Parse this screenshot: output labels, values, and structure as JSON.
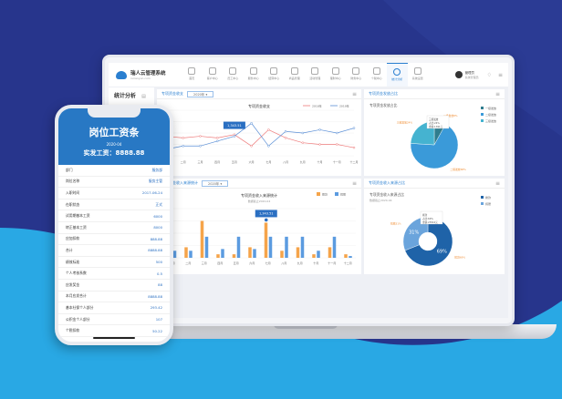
{
  "colors": {
    "bg_dark": "#27358c",
    "bg_light": "#29a8e4",
    "accent": "#2a7fd0",
    "orange": "#f5a44a",
    "red": "#ee7b7b"
  },
  "app": {
    "title": "瑞人云管理系统",
    "subtitle": "ruirenyun.com",
    "user_name": "管理员",
    "user_role": "系统管理员"
  },
  "nav": [
    {
      "label": "首页",
      "icon": "home-icon"
    },
    {
      "label": "客户中心",
      "icon": "building-icon"
    },
    {
      "label": "员工中心",
      "icon": "user-icon"
    },
    {
      "label": "服务中心",
      "icon": "heart-icon"
    },
    {
      "label": "结算中心",
      "icon": "document-icon"
    },
    {
      "label": "商品管理",
      "icon": "check-icon"
    },
    {
      "label": "活动管理",
      "icon": "gear-icon"
    },
    {
      "label": "理财中心",
      "icon": "shield-icon"
    },
    {
      "label": "财务中心",
      "icon": "wallet-icon"
    },
    {
      "label": "个税中心",
      "icon": "tax-icon"
    },
    {
      "label": "统计分析",
      "icon": "pie-icon",
      "active": true
    },
    {
      "label": "系统设置",
      "icon": "settings-icon"
    }
  ],
  "sidebar": {
    "title": "统计分析"
  },
  "panels": {
    "line": {
      "header": "专项资金收支",
      "select": "2020年"
    },
    "pie": {
      "header": "专项资金发放占比"
    },
    "bar": {
      "header": "专项资金收入来源统计",
      "select": "2020年"
    },
    "donut": {
      "header": "专项资金收入来源占比"
    }
  },
  "chart_data": [
    {
      "type": "line",
      "title": "专项资金收支",
      "categories": [
        "一月",
        "二月",
        "三月",
        "四月",
        "五月",
        "六月",
        "七月",
        "八月",
        "九月",
        "十月",
        "十一月",
        "十二月"
      ],
      "series": [
        {
          "name": "2018年",
          "color": "#ee7b7b",
          "values": [
            6,
            5.5,
            6,
            5.5,
            6.5,
            3,
            8,
            5.5,
            4,
            3.5,
            3.5,
            2.5
          ]
        },
        {
          "name": "2019年",
          "color": "#5b8fd6",
          "values": [
            2,
            3,
            3,
            4.5,
            6,
            10,
            3,
            7.5,
            7,
            8,
            7,
            8.5
          ]
        }
      ],
      "tooltip": "1,343.51",
      "ylim": [
        0,
        14
      ],
      "grid": true,
      "legend": "top-right"
    },
    {
      "type": "pie",
      "title": "专项资金发放占比",
      "labels": [
        "一级发放",
        "二级发放",
        "三级发放"
      ],
      "values": [
        8,
        68,
        24
      ],
      "colors": [
        "#2f7d8e",
        "#3a9ad9",
        "#45b3d0"
      ],
      "slice_labels": [
        "一级发放8%",
        "二级发放68%",
        "三级发放24%"
      ],
      "tooltip": [
        "三级发放",
        "占比:24%",
        "金额:1391元"
      ],
      "legend": "top-right"
    },
    {
      "type": "bar",
      "title": "专项资金收入来源统计",
      "subtitle": "数据截止2020-04",
      "categories": [
        "一月",
        "二月",
        "三月",
        "四月",
        "五月",
        "六月",
        "七月",
        "八月",
        "九月",
        "十月",
        "十一月",
        "十二月"
      ],
      "series": [
        {
          "name": "拨款",
          "color": "#f5a44a",
          "values": [
            8,
            3,
            10.5,
            1,
            1,
            3,
            10,
            2,
            3,
            1,
            3,
            1
          ]
        },
        {
          "name": "捐赠",
          "color": "#5b9be0",
          "values": [
            2,
            2,
            6,
            2.5,
            6,
            2.5,
            6,
            6,
            6,
            2,
            6,
            0.5
          ]
        }
      ],
      "tooltip": "1,343.51",
      "ylim": [
        0,
        14
      ],
      "grid": true,
      "legend": "top-right"
    },
    {
      "type": "donut",
      "title": "专项资金收入来源占比",
      "subtitle": "数据截止2020-04",
      "labels": [
        "拨款",
        "捐赠"
      ],
      "values": [
        69,
        31
      ],
      "colors": [
        "#1f63a8",
        "#6aa4dc"
      ],
      "slice_labels": [
        "拨款69%",
        "捐赠31%"
      ],
      "tooltip": [
        "拨款",
        "占比:69%",
        "金额:23510元"
      ],
      "legend": "top-right"
    }
  ],
  "phone": {
    "title": "岗位工资条",
    "date": "2020-04",
    "pay_label": "实发工资：8888.88",
    "rows": [
      [
        "部门",
        "服务部"
      ],
      [
        "岗位名称",
        "服务主管"
      ],
      [
        "入职时间",
        "2017-06-24"
      ],
      [
        "在职状态",
        "正式"
      ],
      [
        "试用期基本工资",
        "6000"
      ],
      [
        "转正基本工资",
        "8000"
      ],
      [
        "应加扣款",
        "888.88"
      ],
      [
        "合计",
        "8888.88"
      ],
      [
        "绩效标准",
        "500"
      ],
      [
        "个人考核系数",
        "0.5"
      ],
      [
        "应发奖金",
        "88"
      ],
      [
        "本月应发合计",
        "8888.88"
      ],
      [
        "基本社保个人部分",
        "293.42"
      ],
      [
        "公积金个人部分",
        "107"
      ],
      [
        "个税扣款",
        "50.22"
      ]
    ]
  }
}
